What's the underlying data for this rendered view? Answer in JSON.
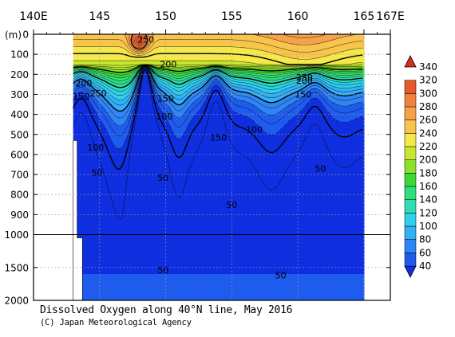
{
  "chart_data": {
    "type": "heatmap",
    "title": "Dissolved Oxygen along 40°N line, May 2016",
    "credit": "(C) Japan Meteorological Agency",
    "ylabel_unit": "(m)",
    "x_ticks": [
      "140E",
      "145",
      "150",
      "155",
      "160",
      "165",
      "167E"
    ],
    "x_tick_values": [
      140,
      145,
      150,
      155,
      160,
      165,
      167
    ],
    "x_range": [
      140,
      167
    ],
    "y_ticks_upper": [
      0,
      100,
      200,
      300,
      400,
      500,
      600,
      700,
      800,
      900,
      1000
    ],
    "y_ticks_lower": [
      1500,
      2000
    ],
    "y_upper_range": [
      0,
      1000
    ],
    "y_lower_range": [
      1000,
      2000
    ],
    "grid": true,
    "legend_position": "right",
    "colorbar_levels": [
      40,
      60,
      80,
      100,
      120,
      140,
      160,
      180,
      200,
      220,
      240,
      260,
      280,
      300,
      320,
      340
    ],
    "colorbar_colors": [
      "#0f2fe0",
      "#1f5cee",
      "#2f86f5",
      "#33b0f7",
      "#2fd0ee",
      "#2fdcb4",
      "#2ee07c",
      "#3cd935",
      "#8ee02b",
      "#c8e830",
      "#f5e84a",
      "#f8c44d",
      "#f6a24a",
      "#f2803f",
      "#e85a2c",
      "#d83018"
    ],
    "contour_labels": [
      {
        "text": "250",
        "lon": 148.5,
        "depth": 25
      },
      {
        "text": "200",
        "lon": 150.2,
        "depth": 150
      },
      {
        "text": "250",
        "lon": 160.5,
        "depth": 215
      },
      {
        "text": "200",
        "lon": 160.5,
        "depth": 230
      },
      {
        "text": "200",
        "lon": 143.8,
        "depth": 245
      },
      {
        "text": "150",
        "lon": 143.6,
        "depth": 310
      },
      {
        "text": "250",
        "lon": 144.9,
        "depth": 295
      },
      {
        "text": "150",
        "lon": 150.0,
        "depth": 320
      },
      {
        "text": "150",
        "lon": 160.4,
        "depth": 300
      },
      {
        "text": "100",
        "lon": 149.9,
        "depth": 410
      },
      {
        "text": "150",
        "lon": 154.0,
        "depth": 515
      },
      {
        "text": "100",
        "lon": 156.7,
        "depth": 475
      },
      {
        "text": "100",
        "lon": 144.7,
        "depth": 565
      },
      {
        "text": "50",
        "lon": 144.8,
        "depth": 690
      },
      {
        "text": "50",
        "lon": 149.8,
        "depth": 715
      },
      {
        "text": "50",
        "lon": 161.7,
        "depth": 670
      },
      {
        "text": "50",
        "lon": 155.0,
        "depth": 850
      },
      {
        "text": "50",
        "lon": 149.8,
        "depth": 1540
      },
      {
        "text": "50",
        "lon": 158.7,
        "depth": 1620
      }
    ]
  }
}
